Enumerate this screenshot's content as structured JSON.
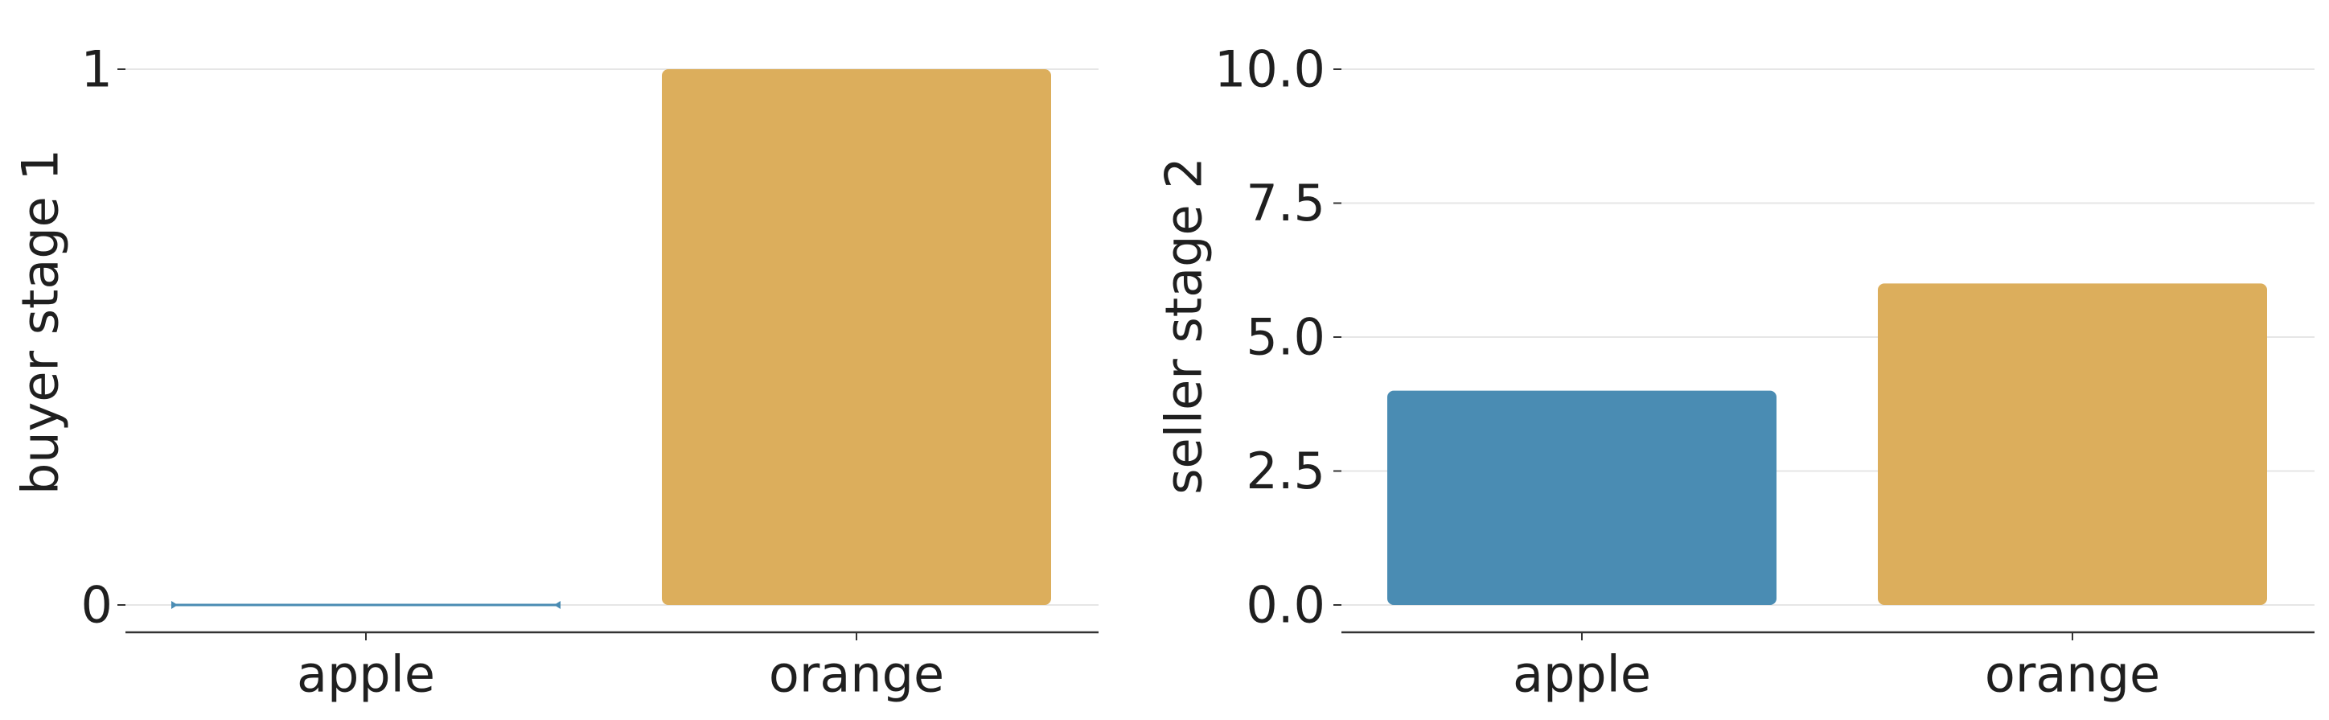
{
  "chart_data": [
    {
      "type": "bar",
      "categories": [
        "apple",
        "orange"
      ],
      "values": [
        0,
        1
      ],
      "colors": [
        "#4a8cb3",
        "#dcae5c"
      ],
      "ylabel": "buyer stage 1",
      "xlabel": "",
      "ylim": [
        0,
        1
      ],
      "yticks": [
        0,
        1
      ],
      "ytick_labels": [
        "0",
        "1"
      ],
      "grid": "horizontal"
    },
    {
      "type": "bar",
      "categories": [
        "apple",
        "orange"
      ],
      "values": [
        4,
        6
      ],
      "colors": [
        "#4a8cb3",
        "#dcae5c"
      ],
      "ylabel": "seller stage 2",
      "xlabel": "",
      "ylim": [
        0,
        10
      ],
      "yticks": [
        0,
        2.5,
        5,
        7.5,
        10
      ],
      "ytick_labels": [
        "0.0",
        "2.5",
        "5.0",
        "7.5",
        "10.0"
      ],
      "grid": "horizontal"
    }
  ]
}
